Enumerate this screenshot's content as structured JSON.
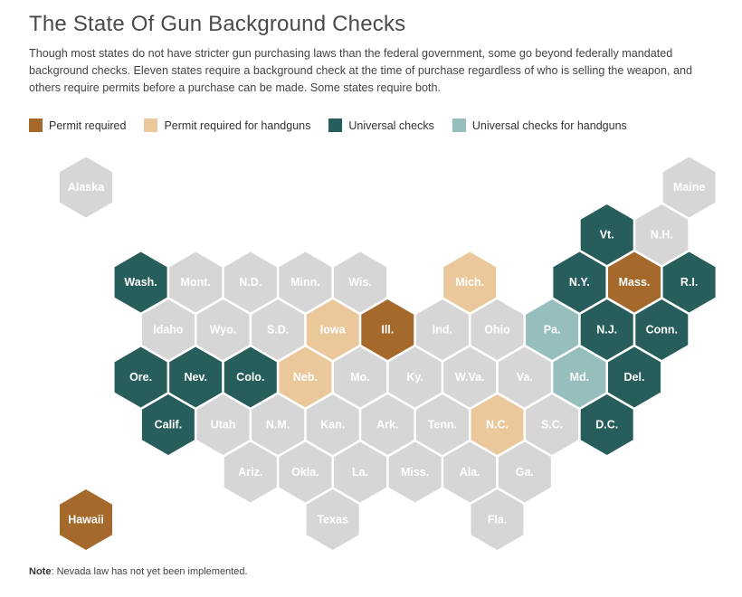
{
  "title": "The State Of Gun Background Checks",
  "description": "Though most states do not have stricter gun purchasing laws than the federal government, some go beyond federally mandated background checks. Eleven states require a background check at the time of purchase regardless of who is selling the weapon, and others require permits before a purchase can be made. Some states require both.",
  "legend": [
    {
      "key": "permit",
      "label": "Permit required",
      "color": "#a4692b"
    },
    {
      "key": "permit_hand",
      "label": "Permit required for handguns",
      "color": "#ebc89c"
    },
    {
      "key": "universal",
      "label": "Universal checks",
      "color": "#275d5b"
    },
    {
      "key": "universal_hand",
      "label": "Universal checks for handguns",
      "color": "#95bebc"
    }
  ],
  "default_color": "#d6d6d6",
  "states": [
    {
      "abbr": "Alaska",
      "row": 0,
      "col": 0,
      "category": "none"
    },
    {
      "abbr": "Maine",
      "row": 0,
      "col": 11,
      "category": "none"
    },
    {
      "abbr": "Vt.",
      "row": 1,
      "col": 9.5,
      "category": "universal"
    },
    {
      "abbr": "N.H.",
      "row": 1,
      "col": 10.5,
      "category": "none"
    },
    {
      "abbr": "Wash.",
      "row": 2,
      "col": 1,
      "category": "universal"
    },
    {
      "abbr": "Mont.",
      "row": 2,
      "col": 2,
      "category": "none"
    },
    {
      "abbr": "N.D.",
      "row": 2,
      "col": 3,
      "category": "none"
    },
    {
      "abbr": "Minn.",
      "row": 2,
      "col": 4,
      "category": "none"
    },
    {
      "abbr": "Wis.",
      "row": 2,
      "col": 5,
      "category": "none"
    },
    {
      "abbr": "Mich.",
      "row": 2,
      "col": 7,
      "category": "permit_hand"
    },
    {
      "abbr": "N.Y.",
      "row": 2,
      "col": 9,
      "category": "universal"
    },
    {
      "abbr": "Mass.",
      "row": 2,
      "col": 10,
      "category": "permit"
    },
    {
      "abbr": "R.I.",
      "row": 2,
      "col": 11,
      "category": "universal"
    },
    {
      "abbr": "Idaho",
      "row": 3,
      "col": 1.5,
      "category": "none"
    },
    {
      "abbr": "Wyo.",
      "row": 3,
      "col": 2.5,
      "category": "none"
    },
    {
      "abbr": "S.D.",
      "row": 3,
      "col": 3.5,
      "category": "none"
    },
    {
      "abbr": "Iowa",
      "row": 3,
      "col": 4.5,
      "category": "permit_hand"
    },
    {
      "abbr": "Ill.",
      "row": 3,
      "col": 5.5,
      "category": "permit"
    },
    {
      "abbr": "Ind.",
      "row": 3,
      "col": 6.5,
      "category": "none"
    },
    {
      "abbr": "Ohio",
      "row": 3,
      "col": 7.5,
      "category": "none"
    },
    {
      "abbr": "Pa.",
      "row": 3,
      "col": 8.5,
      "category": "universal_hand"
    },
    {
      "abbr": "N.J.",
      "row": 3,
      "col": 9.5,
      "category": "universal"
    },
    {
      "abbr": "Conn.",
      "row": 3,
      "col": 10.5,
      "category": "universal"
    },
    {
      "abbr": "Ore.",
      "row": 4,
      "col": 1,
      "category": "universal"
    },
    {
      "abbr": "Nev.",
      "row": 4,
      "col": 2,
      "category": "universal"
    },
    {
      "abbr": "Colo.",
      "row": 4,
      "col": 3,
      "category": "universal"
    },
    {
      "abbr": "Neb.",
      "row": 4,
      "col": 4,
      "category": "permit_hand"
    },
    {
      "abbr": "Mo.",
      "row": 4,
      "col": 5,
      "category": "none"
    },
    {
      "abbr": "Ky.",
      "row": 4,
      "col": 6,
      "category": "none"
    },
    {
      "abbr": "W.Va.",
      "row": 4,
      "col": 7,
      "category": "none"
    },
    {
      "abbr": "Va.",
      "row": 4,
      "col": 8,
      "category": "none"
    },
    {
      "abbr": "Md.",
      "row": 4,
      "col": 9,
      "category": "universal_hand"
    },
    {
      "abbr": "Del.",
      "row": 4,
      "col": 10,
      "category": "universal"
    },
    {
      "abbr": "Calif.",
      "row": 5,
      "col": 1.5,
      "category": "universal"
    },
    {
      "abbr": "Utah",
      "row": 5,
      "col": 2.5,
      "category": "none"
    },
    {
      "abbr": "N.M.",
      "row": 5,
      "col": 3.5,
      "category": "none"
    },
    {
      "abbr": "Kan.",
      "row": 5,
      "col": 4.5,
      "category": "none"
    },
    {
      "abbr": "Ark.",
      "row": 5,
      "col": 5.5,
      "category": "none"
    },
    {
      "abbr": "Tenn.",
      "row": 5,
      "col": 6.5,
      "category": "none"
    },
    {
      "abbr": "N.C.",
      "row": 5,
      "col": 7.5,
      "category": "permit_hand"
    },
    {
      "abbr": "S.C.",
      "row": 5,
      "col": 8.5,
      "category": "none"
    },
    {
      "abbr": "D.C.",
      "row": 5,
      "col": 9.5,
      "category": "universal"
    },
    {
      "abbr": "Ariz.",
      "row": 6,
      "col": 3,
      "category": "none"
    },
    {
      "abbr": "Okla.",
      "row": 6,
      "col": 4,
      "category": "none"
    },
    {
      "abbr": "La.",
      "row": 6,
      "col": 5,
      "category": "none"
    },
    {
      "abbr": "Miss.",
      "row": 6,
      "col": 6,
      "category": "none"
    },
    {
      "abbr": "Ala.",
      "row": 6,
      "col": 7,
      "category": "none"
    },
    {
      "abbr": "Ga.",
      "row": 6,
      "col": 8,
      "category": "none"
    },
    {
      "abbr": "Hawaii",
      "row": 7,
      "col": 0,
      "category": "permit"
    },
    {
      "abbr": "Texas",
      "row": 7,
      "col": 4.5,
      "category": "none"
    },
    {
      "abbr": "Fla.",
      "row": 7,
      "col": 7.5,
      "category": "none"
    }
  ],
  "note": {
    "label": "Note",
    "text": ": Nevada law has not yet been implemented."
  }
}
